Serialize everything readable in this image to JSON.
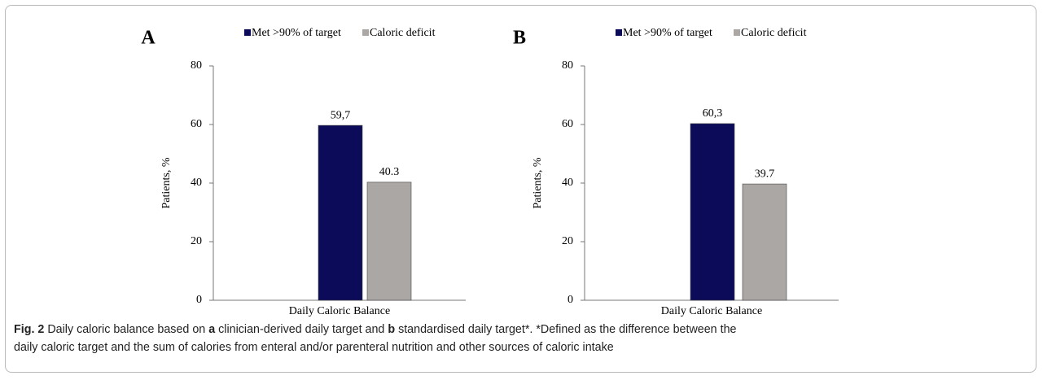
{
  "chart_data": [
    {
      "type": "bar",
      "title": "A",
      "categories": [
        "Daily Caloric Balance"
      ],
      "ylabel": "Patients, %",
      "series": [
        {
          "name": "Met >90% of target",
          "color": "#0b0b5a",
          "values": [
            59.7
          ],
          "value_labels": [
            "59,7"
          ]
        },
        {
          "name": "Caloric deficit",
          "color": "#aba7a5",
          "values": [
            40.3
          ],
          "value_labels": [
            "40.3"
          ]
        }
      ],
      "ylim": [
        0,
        80
      ],
      "yticks": [
        0,
        20,
        40,
        60,
        80
      ]
    },
    {
      "type": "bar",
      "title": "B",
      "categories": [
        "Daily Caloric Balance"
      ],
      "ylabel": "Patients, %",
      "series": [
        {
          "name": "Met >90% of target",
          "color": "#0b0b5a",
          "values": [
            60.3
          ],
          "value_labels": [
            "60,3"
          ]
        },
        {
          "name": "Caloric deficit",
          "color": "#aba7a5",
          "values": [
            39.7
          ],
          "value_labels": [
            "39.7"
          ]
        }
      ],
      "ylim": [
        0,
        80
      ],
      "yticks": [
        0,
        20,
        40,
        60,
        80
      ]
    }
  ],
  "caption": {
    "segments": [
      "Fig. 2",
      " Daily caloric balance based on ",
      "a",
      " clinician-derived daily target and ",
      "b",
      " standardised daily target*. *Defined as the difference between the",
      "daily caloric target and the sum of calories from enteral and/or parenteral nutrition and other sources of caloric intake"
    ]
  }
}
